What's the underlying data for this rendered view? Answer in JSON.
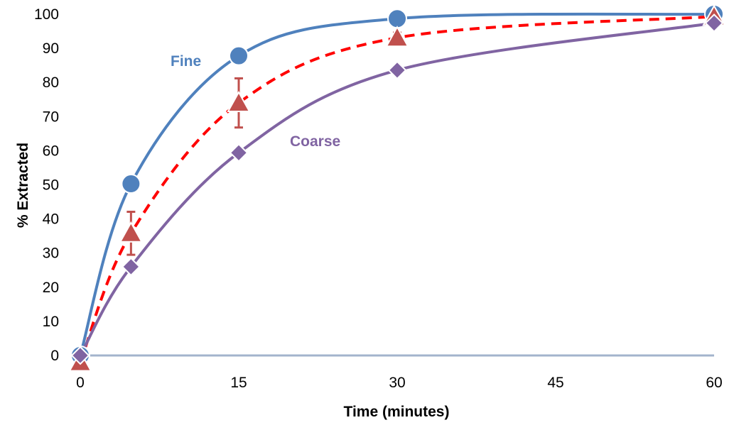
{
  "chart_data": {
    "type": "line",
    "xlabel": "Time (minutes)",
    "ylabel": "% Extracted",
    "ylim": [
      0,
      100
    ],
    "y_ticks": [
      0,
      10,
      20,
      30,
      40,
      50,
      60,
      70,
      80,
      90,
      100
    ],
    "x_categories": [
      "0",
      "15",
      "30",
      "45",
      "60"
    ],
    "grid": false,
    "legend": "none",
    "series": [
      {
        "name": "Fine",
        "color": "#4f81bd",
        "marker": "circle",
        "line": "solid",
        "x": [
          0,
          5,
          15,
          30,
          60
        ],
        "y": [
          0,
          50.3,
          87.8,
          98.7,
          100
        ]
      },
      {
        "color": "#ff0000",
        "marker_color": "#c0504d",
        "marker": "triangle",
        "line": "dashed",
        "x": [
          0,
          5,
          15,
          30,
          60
        ],
        "y": [
          -2,
          35.8,
          74,
          93.1,
          99.3
        ],
        "error": [
          0,
          6.3,
          7.2,
          1.5,
          0
        ]
      },
      {
        "name": "Coarse",
        "color": "#8064a2",
        "marker": "diamond",
        "line": "solid",
        "x": [
          0,
          5,
          15,
          30,
          60
        ],
        "y": [
          0,
          26,
          59.4,
          83.6,
          97.4
        ]
      }
    ]
  }
}
